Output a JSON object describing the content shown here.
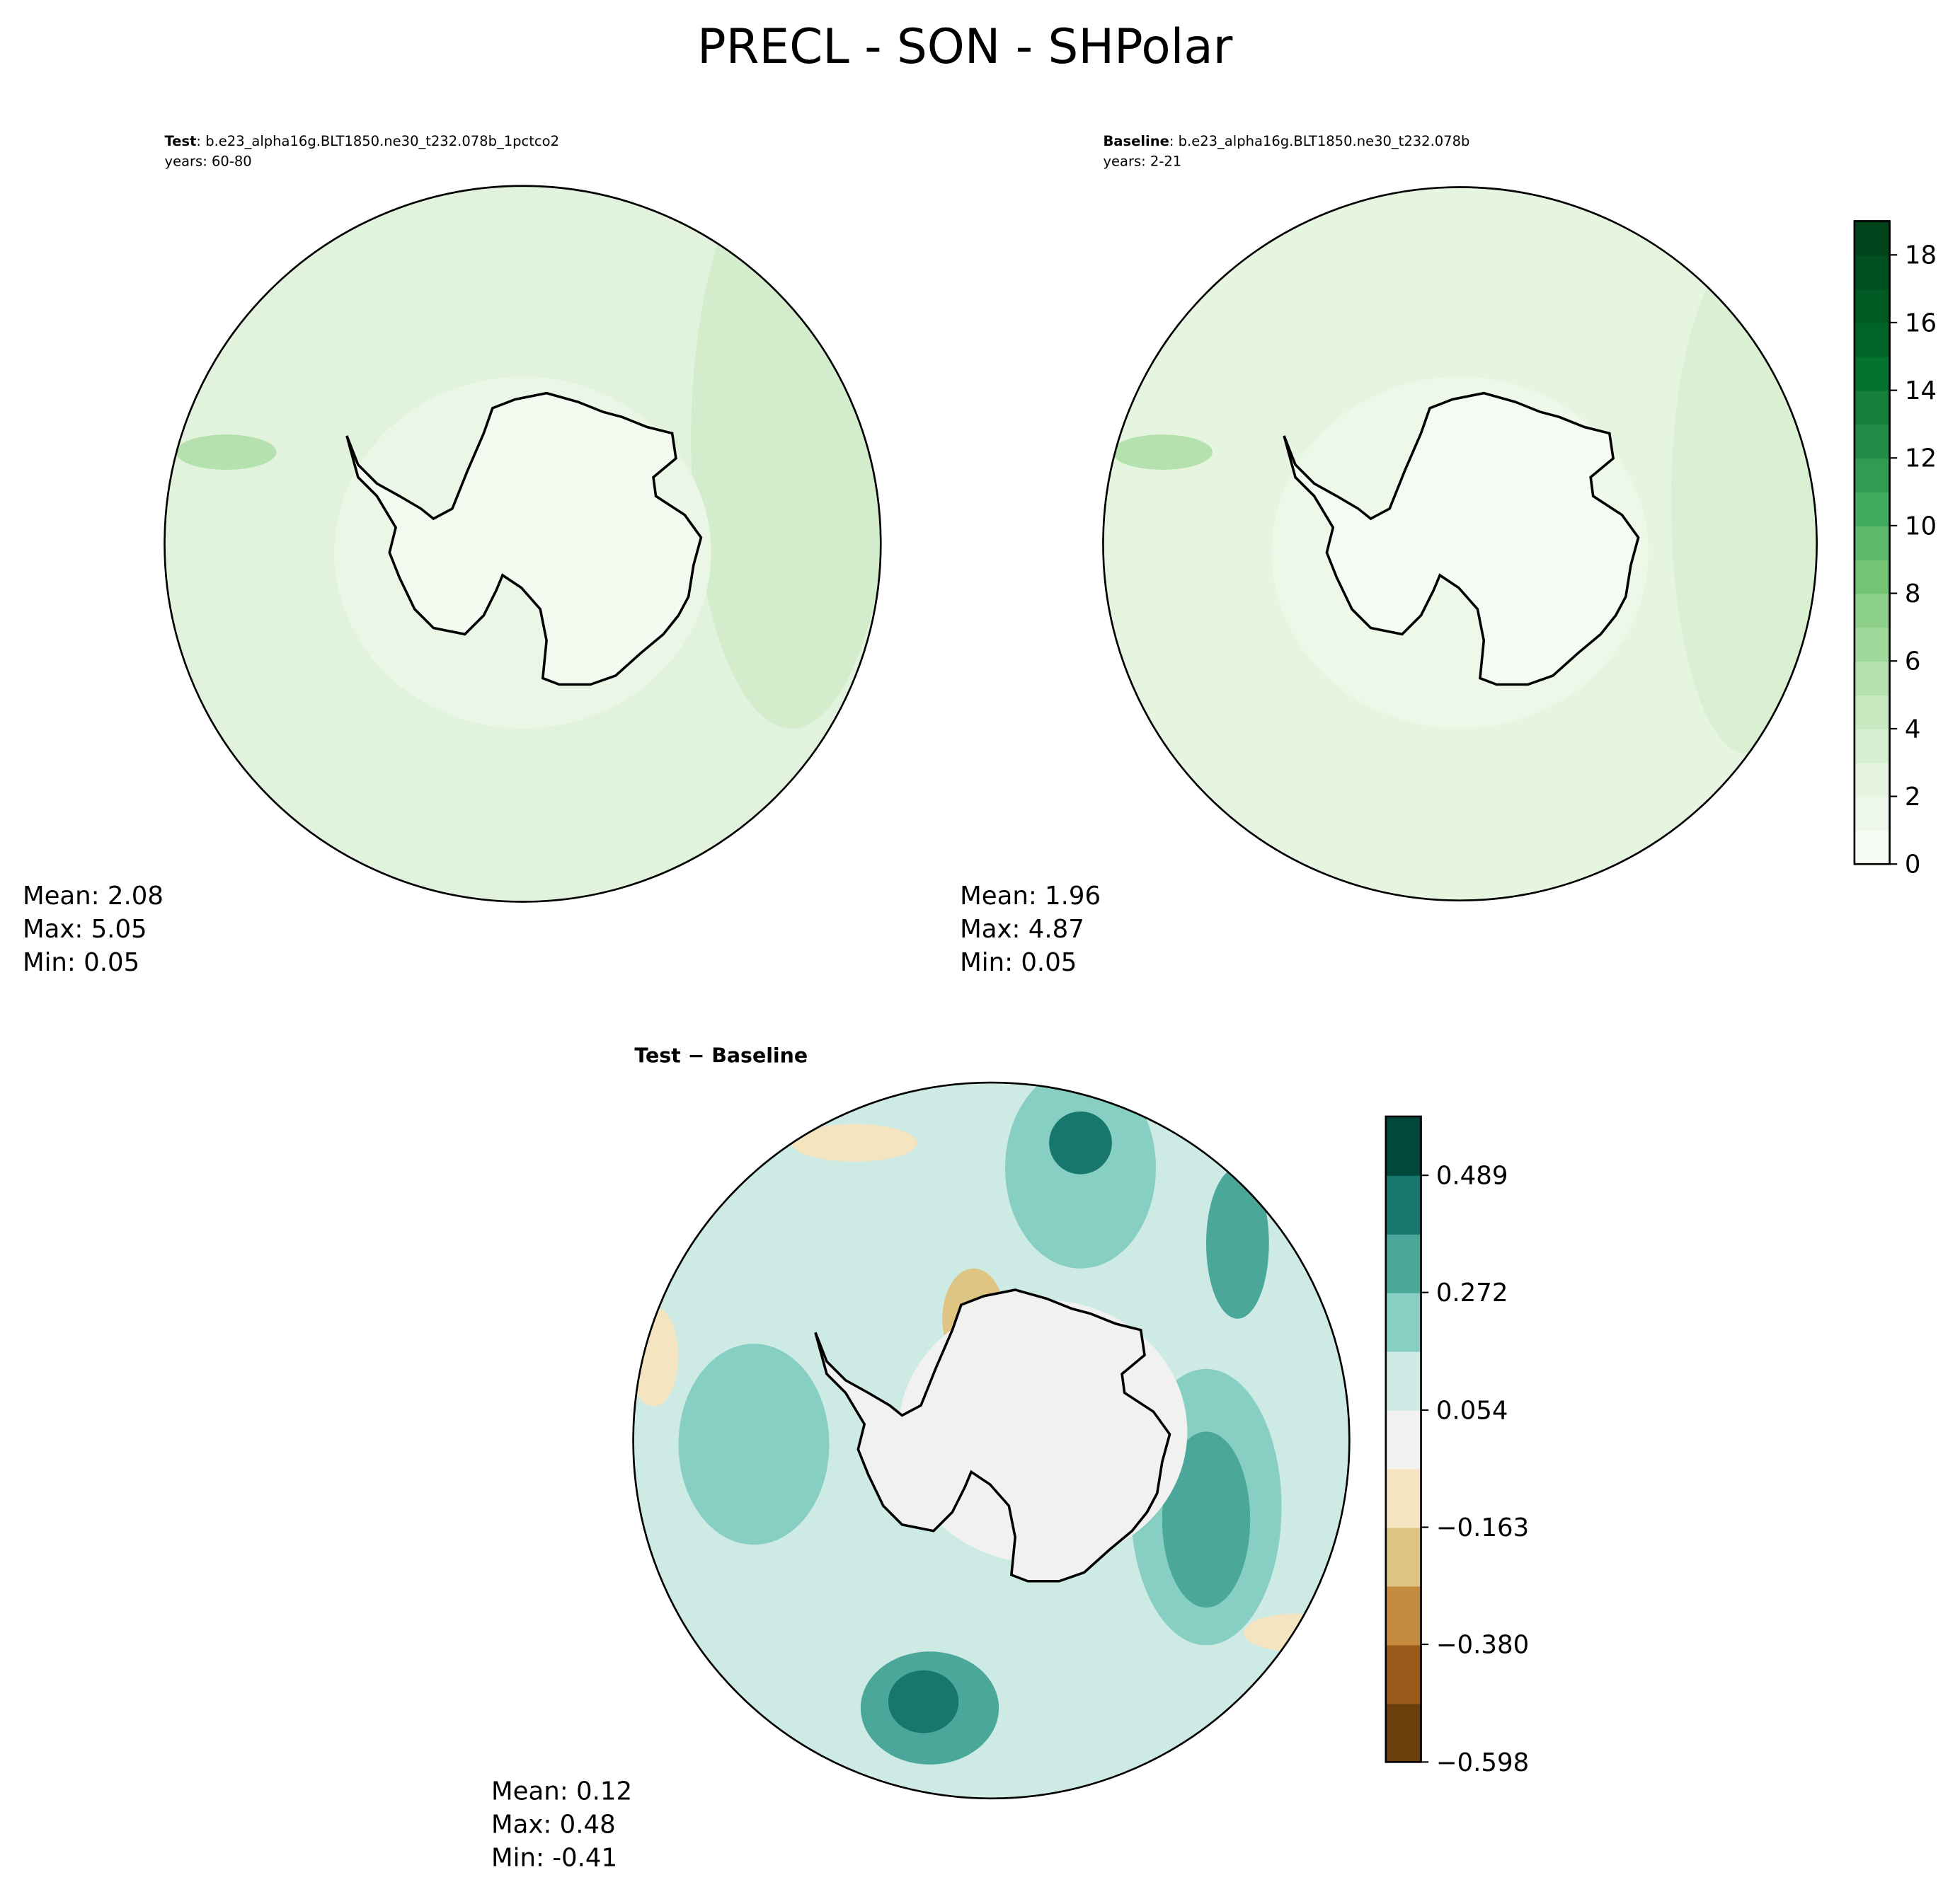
{
  "title": "PRECL - SON - SHPolar",
  "chart_data": [
    {
      "type": "map",
      "label": "Test",
      "title": ": b.e23_alpha16g.BLT1850.ne30_t232.078b_1pctco2",
      "subtitle": "years: 60-80",
      "stats": [
        "Mean:  2.08",
        "Max:  5.05",
        "Min:  0.05"
      ]
    },
    {
      "type": "map",
      "label": "Baseline",
      "title": ": b.e23_alpha16g.BLT1850.ne30_t232.078b",
      "subtitle": "years: 2-21",
      "stats": [
        "Mean:  1.96",
        "Max:  4.87",
        "Min:  0.05"
      ],
      "colorbar": {
        "ylim": [
          0,
          19
        ],
        "yticks": [
          0,
          2,
          4,
          6,
          8,
          10,
          12,
          14,
          16,
          18
        ],
        "colors": [
          "#f7fcf5",
          "#eef8ea",
          "#e5f5e0",
          "#d6efd0",
          "#c7e9c0",
          "#b4e1ad",
          "#a1d99b",
          "#8dd08a",
          "#74c476",
          "#5db96b",
          "#41ab5d",
          "#339b51",
          "#238b45",
          "#157f3b",
          "#067230",
          "#006428",
          "#005a24",
          "#004f20",
          "#00441b"
        ]
      }
    },
    {
      "type": "map",
      "title": "Test − Baseline",
      "stats": [
        "Mean:  0.12",
        "Max:  0.48",
        "Min: -0.41"
      ],
      "colorbar": {
        "ylim": [
          -0.598,
          0.598
        ],
        "yticks": [
          {
            "value": -0.598,
            "label": "−0.598"
          },
          {
            "value": -0.38,
            "label": "−0.380"
          },
          {
            "value": -0.163,
            "label": "−0.163"
          },
          0.054,
          0.272,
          0.489
        ],
        "colors": [
          "#6b3e0b",
          "#9a5a1a",
          "#c58c40",
          "#dfc584",
          "#f5e4c0",
          "#f1f2f0",
          "#cdeae4",
          "#88cfc3",
          "#4aa79a",
          "#17776d",
          "#00483b"
        ]
      }
    }
  ]
}
